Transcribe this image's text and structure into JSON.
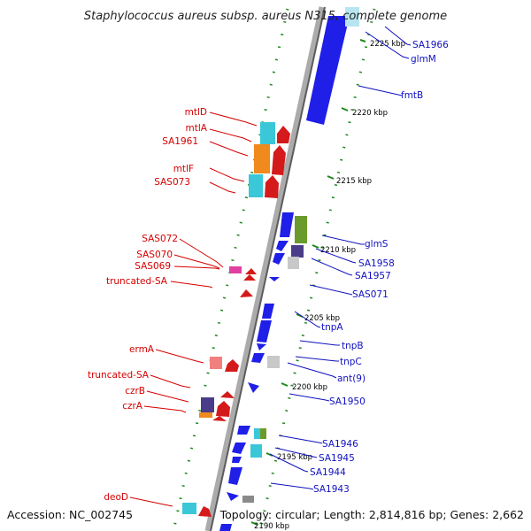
{
  "title": "Staphylococcus aureus subsp. aureus N315, complete genome",
  "accession": "Accession: NC_002745",
  "summary": "Topology: circular; Length: 2,814,816 bp; Genes: 2,662",
  "colors": {
    "forward": "#d41a1a",
    "reverse": "#1f1fe8",
    "label_left": "#d40000",
    "label_right": "#1010c0",
    "ruler": "#1d8a1d",
    "backbone": "#8a8a8a"
  },
  "scale_ticks": [
    {
      "label": "2225 kbp"
    },
    {
      "label": "2220 kbp"
    },
    {
      "label": "2215 kbp"
    },
    {
      "label": "2210 kbp"
    },
    {
      "label": "2205 kbp"
    },
    {
      "label": "2200 kbp"
    },
    {
      "label": "2195 kbp"
    },
    {
      "label": "2190 kbp"
    }
  ],
  "left_labels": [
    "mtlD",
    "mtlA",
    "SA1961",
    "mtlF",
    "SAS073",
    "SAS072",
    "SAS070",
    "SAS069",
    "truncated-SA",
    "ermA",
    "truncated-SA",
    "czrB",
    "czrA",
    "deoD"
  ],
  "right_labels": [
    "SA1966",
    "glmM",
    "fmtB",
    "glmS",
    "SA1958",
    "SA1957",
    "SAS071",
    "tnpA",
    "tnpB",
    "tnpC",
    "ant(9)",
    "SA1950",
    "SA1946",
    "SA1945",
    "SA1944",
    "SA1943"
  ]
}
